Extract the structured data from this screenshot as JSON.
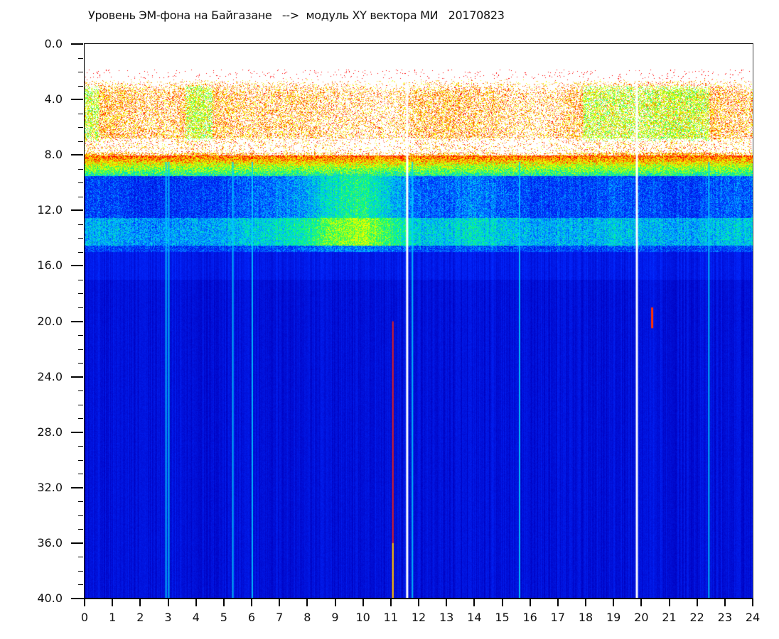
{
  "chart_data": {
    "type": "heatmap",
    "title": "Уровень ЭМ-фона на Байгазане   -->  модуль XY вектора МИ   20170823",
    "xlabel": "",
    "ylabel": "",
    "xlim": [
      0,
      24
    ],
    "ylim": [
      40,
      0
    ],
    "x_ticks": [
      "0",
      "1",
      "2",
      "3",
      "4",
      "5",
      "6",
      "7",
      "8",
      "9",
      "10",
      "11",
      "12",
      "13",
      "14",
      "15",
      "16",
      "17",
      "18",
      "19",
      "20",
      "21",
      "22",
      "23",
      "24"
    ],
    "y_ticks": [
      "0.0",
      "4.0",
      "8.0",
      "12.0",
      "16.0",
      "20.0",
      "24.0",
      "28.0",
      "32.0",
      "36.0",
      "40.0"
    ],
    "colormap": [
      "#0000c0",
      "#0030ff",
      "#00c0ff",
      "#00ff80",
      "#c0ff00",
      "#ffff00",
      "#ff0000",
      "#ffffff"
    ],
    "hourly_upper_band_activity": [
      0.8,
      0.7,
      0.55,
      0.45,
      0.95,
      0.6,
      0.5,
      0.55,
      0.5,
      0.4,
      0.35,
      0.3,
      0.6,
      0.65,
      0.6,
      0.45,
      0.3,
      0.4,
      0.8,
      0.8,
      0.75,
      0.95,
      0.9,
      0.55
    ],
    "hourly_mid_band_activity": [
      0.45,
      0.45,
      0.4,
      0.4,
      0.45,
      0.45,
      0.5,
      0.55,
      0.6,
      0.75,
      0.8,
      0.65,
      0.5,
      0.5,
      0.55,
      0.5,
      0.45,
      0.45,
      0.45,
      0.5,
      0.45,
      0.45,
      0.45,
      0.5
    ],
    "white_gap_hours": [
      11.55,
      19.8
    ],
    "cyan_line_hours": [
      2.9,
      3.0,
      5.3,
      6.0,
      11.75,
      15.6,
      22.4
    ],
    "red_line_hours": [
      11.05
    ],
    "band_limits": {
      "upper_noise": [
        2.5,
        8.0
      ],
      "transition": [
        8.0,
        9.5
      ],
      "mid_band": [
        9.5,
        15.0
      ],
      "background": [
        15.0,
        40.0
      ]
    }
  }
}
